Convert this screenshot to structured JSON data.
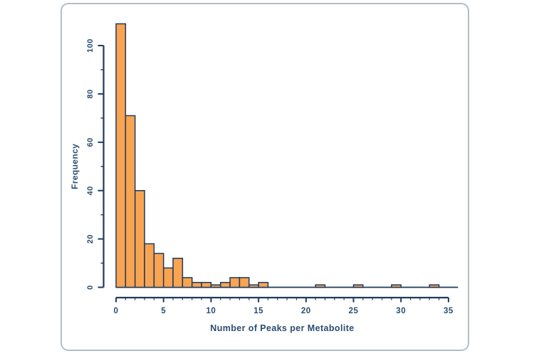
{
  "frame": {
    "border_color": "#b5bdc5",
    "background": "#ffffff"
  },
  "chart_data": {
    "type": "bar",
    "subtype": "histogram",
    "title": "",
    "xlabel": "Number of Peaks per Metabolite",
    "ylabel": "Frequency",
    "bin_start": 0,
    "bin_width": 1,
    "counts": [
      109,
      71,
      40,
      18,
      14,
      8,
      12,
      4,
      2,
      2,
      1,
      2,
      4,
      4,
      1,
      2,
      0,
      0,
      0,
      0,
      0,
      1,
      0,
      0,
      0,
      1,
      0,
      0,
      0,
      1,
      0,
      0,
      0,
      1,
      0,
      0
    ],
    "xlim": [
      0,
      36
    ],
    "ylim": [
      0,
      110
    ],
    "x_major_ticks": [
      0,
      5,
      10,
      15,
      20,
      25,
      30,
      35
    ],
    "x_tick_labels": [
      "0",
      "5",
      "10",
      "15",
      "20",
      "25",
      "30",
      "35"
    ],
    "x_minor_step": 1,
    "y_major_ticks": [
      0,
      20,
      40,
      60,
      80,
      100
    ],
    "y_tick_labels": [
      "0",
      "20",
      "40",
      "60",
      "80",
      "100"
    ],
    "y_minor_step": 10,
    "y_tick_label_rotation_deg": -90,
    "grid": false,
    "legend": null,
    "bar_fill": "#f9a451",
    "bar_edge": "#1d3a5e",
    "axis_color": "#1d3a5e",
    "label_color": "#2b4c72"
  }
}
